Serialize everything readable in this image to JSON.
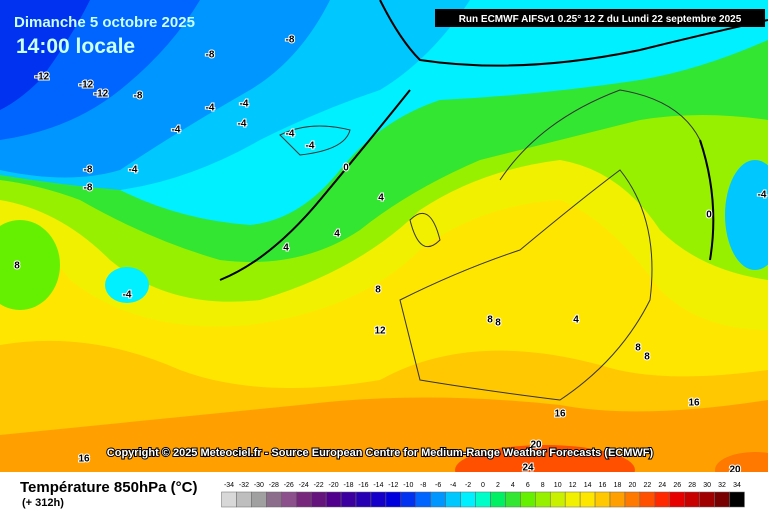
{
  "header": {
    "date": "Dimanche 5 octobre 2025",
    "time": "14:00 locale",
    "run": "Run ECMWF AIFSv1 0.25° 12 Z du Lundi 22 septembre 2025"
  },
  "map": {
    "contour_labels": [
      -8,
      -8,
      -12,
      -12,
      -12,
      -8,
      -4,
      -4,
      -4,
      -4,
      -4,
      -4,
      -8,
      -4,
      -8,
      0,
      4,
      4,
      4,
      8,
      -4,
      8,
      12,
      8,
      8,
      4,
      8,
      8,
      16,
      16,
      16,
      20,
      24,
      20,
      0,
      -4
    ]
  },
  "copyright": "Copyright © 2025 Meteociel.fr - Source European Centre for Medium-Range Weather Forecasts (ECMWF)",
  "legend": {
    "title": "Température 850hPa (°C)",
    "lead_time": "(+ 312h)",
    "ticks": [
      -34,
      -32,
      -30,
      -28,
      -26,
      -24,
      -22,
      -20,
      -18,
      -16,
      -14,
      -12,
      -10,
      -8,
      -6,
      -4,
      -2,
      0,
      2,
      4,
      6,
      8,
      10,
      12,
      14,
      16,
      18,
      20,
      22,
      24,
      26,
      28,
      30,
      32,
      34
    ],
    "colors": [
      "#d8d8d8",
      "#bebebe",
      "#a0a0a0",
      "#8c6e8c",
      "#8c508c",
      "#78287c",
      "#64147c",
      "#50008c",
      "#3c00a0",
      "#2800b4",
      "#1400c8",
      "#0000dc",
      "#0032f0",
      "#0064ff",
      "#0096ff",
      "#00c8ff",
      "#00f0ff",
      "#00ffc8",
      "#00f064",
      "#32e632",
      "#64f000",
      "#96f000",
      "#c8f000",
      "#f0f000",
      "#ffe600",
      "#ffc800",
      "#ffa000",
      "#ff7800",
      "#ff5000",
      "#ff2800",
      "#e60000",
      "#c80000",
      "#a00000",
      "#780000",
      "#000000"
    ]
  }
}
